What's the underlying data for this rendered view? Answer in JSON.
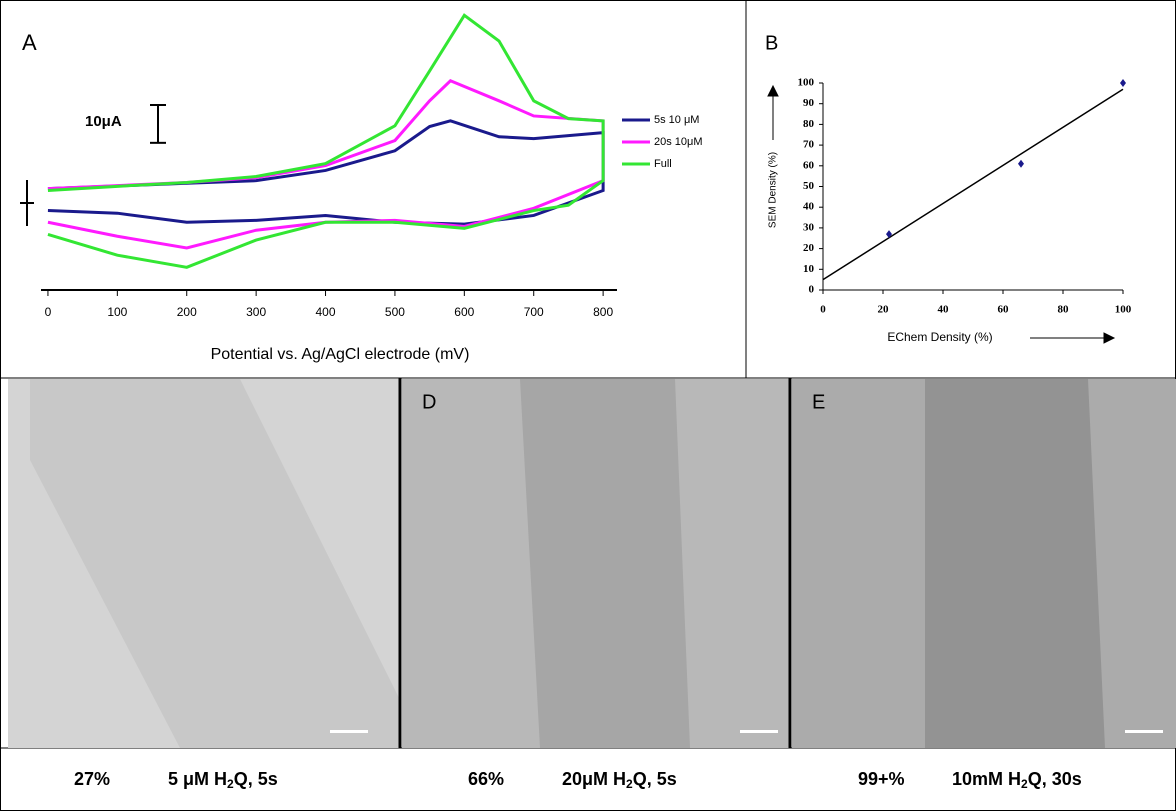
{
  "chart_data": [
    {
      "type": "line",
      "panel_label": "A",
      "x_label": "Potential vs. Ag/AgCl electrode (mV)",
      "xlim": [
        -10,
        820
      ],
      "xticks": [
        0,
        100,
        200,
        300,
        400,
        500,
        600,
        700,
        800
      ],
      "ylim": [
        0,
        74
      ],
      "scale_bar": {
        "value": 10,
        "label": "10μA"
      },
      "series": [
        {
          "name": "5s 10 μM",
          "color": "#1a1a8c",
          "x": [
            0,
            200,
            300,
            400,
            500,
            550,
            580,
            650,
            700,
            800,
            800,
            700,
            600,
            500,
            400,
            300,
            200,
            100,
            0
          ],
          "values": [
            26.8,
            28.2,
            28.9,
            31.6,
            36.8,
            43.2,
            44.7,
            40.5,
            40,
            41.6,
            26.3,
            19.7,
            17.4,
            17.9,
            19.7,
            18.4,
            17.9,
            20.3,
            21
          ]
        },
        {
          "name": "20s 10μM",
          "color": "#ff1aff",
          "x": [
            0,
            100,
            200,
            300,
            400,
            500,
            550,
            580,
            650,
            700,
            800,
            800,
            700,
            600,
            500,
            400,
            300,
            200,
            100,
            0
          ],
          "values": [
            26.8,
            27.6,
            28.4,
            29.7,
            32.9,
            39.5,
            50,
            55.3,
            50,
            46,
            44.7,
            28.9,
            21.6,
            16.8,
            18.4,
            17.9,
            15.8,
            11.1,
            14.2,
            17.9
          ]
        },
        {
          "name": "Full",
          "color": "#33e633",
          "x": [
            0,
            100,
            200,
            300,
            400,
            500,
            550,
            600,
            650,
            700,
            750,
            800,
            800,
            750,
            700,
            600,
            500,
            400,
            300,
            200,
            100,
            0
          ],
          "values": [
            26.3,
            27.4,
            28.4,
            30,
            33.4,
            43.4,
            57.9,
            72.6,
            65.8,
            50,
            45.3,
            44.7,
            28.9,
            22.4,
            21,
            16.3,
            17.9,
            17.9,
            13.2,
            6,
            9.2,
            14.7
          ]
        }
      ]
    },
    {
      "type": "scatter",
      "panel_label": "B",
      "x_label": "EChem  Density (%)",
      "y_label": "SEM Density (%)",
      "xlim": [
        0,
        100
      ],
      "xticks": [
        0,
        20,
        40,
        60,
        80,
        100
      ],
      "ylim": [
        0,
        100
      ],
      "yticks": [
        0,
        10,
        20,
        30,
        40,
        50,
        60,
        70,
        80,
        90,
        100
      ],
      "color": "#1a1a8c",
      "x": [
        22,
        66,
        100
      ],
      "values": [
        27,
        61,
        100
      ],
      "fit_line": {
        "x": [
          0,
          100
        ],
        "values": [
          5,
          97
        ]
      }
    }
  ],
  "images": [
    {
      "label": null,
      "percent": "27%",
      "condition": [
        "5 μM H",
        "2",
        "Q, 5s"
      ]
    },
    {
      "label": "D",
      "percent": "66%",
      "condition": [
        "20μM H",
        "2",
        "Q, 5s"
      ]
    },
    {
      "label": "E",
      "percent": "99+%",
      "condition": [
        "10mM H",
        "2",
        "Q, 30s"
      ]
    }
  ]
}
